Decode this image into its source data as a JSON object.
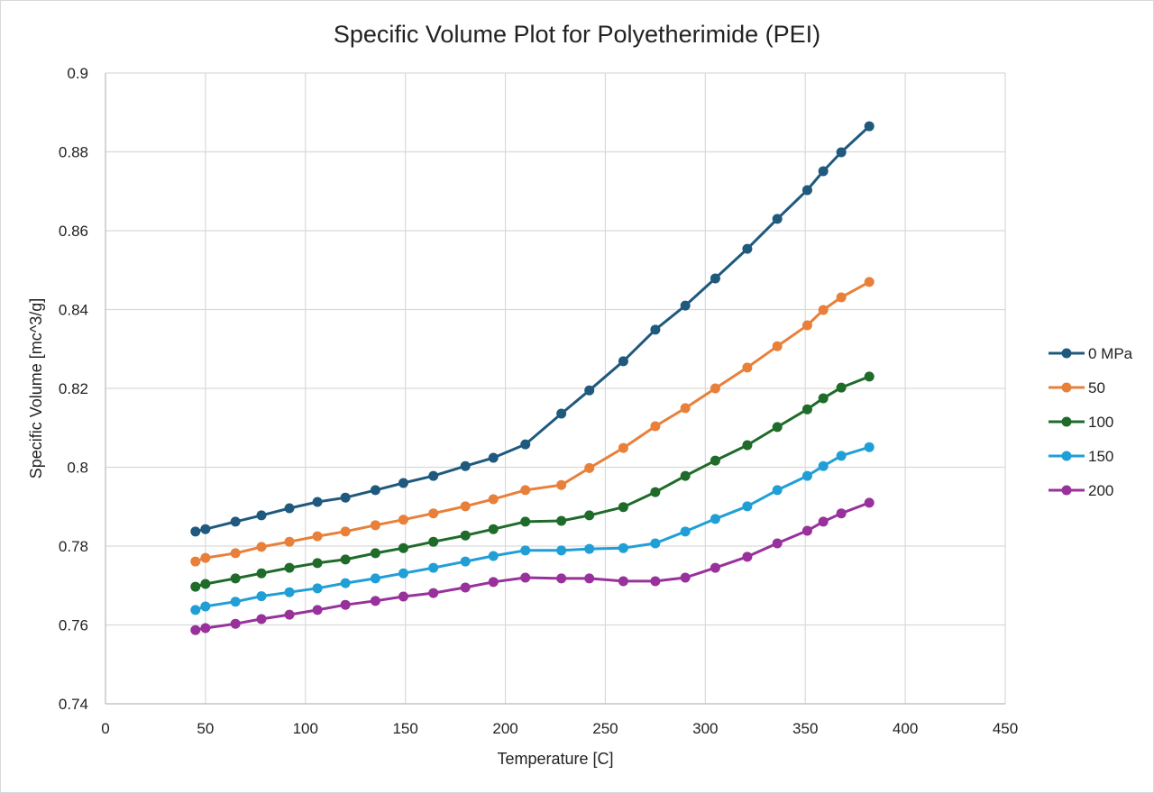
{
  "chart_data": {
    "type": "line",
    "title": "Specific Volume Plot for Polyetherimide (PEI)",
    "xlabel": "Temperature [C]",
    "ylabel": "Specific Volume [mc^3/g]",
    "xlim": [
      0,
      450
    ],
    "ylim": [
      0.74,
      0.9
    ],
    "x_ticks": [
      0,
      50,
      100,
      150,
      200,
      250,
      300,
      350,
      400,
      450
    ],
    "y_ticks": [
      0.74,
      0.76,
      0.78,
      0.8,
      0.82,
      0.84,
      0.86,
      0.88,
      0.9
    ],
    "x_tick_labels": [
      "0",
      "50",
      "100",
      "150",
      "200",
      "250",
      "300",
      "350",
      "400",
      "450"
    ],
    "y_tick_labels": [
      "0.74",
      "0.76",
      "0.78",
      "0.8",
      "0.82",
      "0.84",
      "0.86",
      "0.88",
      "0.9"
    ],
    "grid": true,
    "legend_position": "right",
    "x": [
      45,
      50,
      65,
      78,
      92,
      106,
      120,
      135,
      149,
      164,
      180,
      194,
      210,
      228,
      242,
      259,
      275,
      290,
      305,
      321,
      336,
      351,
      359,
      368,
      382
    ],
    "series": [
      {
        "name": "0 MPa",
        "color": "#1f5a7e",
        "values": [
          0.7837,
          0.7843,
          0.7862,
          0.7878,
          0.7896,
          0.7912,
          0.7923,
          0.7942,
          0.796,
          0.7978,
          0.8003,
          0.8024,
          0.8058,
          0.8136,
          0.8195,
          0.8269,
          0.8349,
          0.841,
          0.8479,
          0.8554,
          0.863,
          0.8703,
          0.8751,
          0.8799,
          0.8865
        ]
      },
      {
        "name": "50",
        "color": "#e8803a",
        "values": [
          0.7761,
          0.777,
          0.7782,
          0.7798,
          0.7811,
          0.7825,
          0.7837,
          0.7853,
          0.7867,
          0.7883,
          0.7901,
          0.7919,
          0.7942,
          0.7955,
          0.7998,
          0.8049,
          0.8104,
          0.815,
          0.82,
          0.8253,
          0.8307,
          0.836,
          0.8399,
          0.8431,
          0.847
        ]
      },
      {
        "name": "100",
        "color": "#1e6b2a",
        "values": [
          0.7697,
          0.7704,
          0.7718,
          0.7731,
          0.7745,
          0.7757,
          0.7766,
          0.7782,
          0.7795,
          0.7811,
          0.7827,
          0.7843,
          0.7862,
          0.7864,
          0.7878,
          0.7899,
          0.7937,
          0.7978,
          0.8017,
          0.8056,
          0.8102,
          0.8147,
          0.8175,
          0.8202,
          0.823
        ]
      },
      {
        "name": "150",
        "color": "#209fd6",
        "values": [
          0.7638,
          0.7647,
          0.7659,
          0.7673,
          0.7683,
          0.7693,
          0.7706,
          0.7718,
          0.7731,
          0.7745,
          0.7761,
          0.7775,
          0.7789,
          0.7789,
          0.7793,
          0.7795,
          0.7807,
          0.7837,
          0.7869,
          0.7901,
          0.7942,
          0.7978,
          0.8003,
          0.8029,
          0.8051
        ]
      },
      {
        "name": "200",
        "color": "#98319c",
        "values": [
          0.7587,
          0.7592,
          0.7603,
          0.7615,
          0.7626,
          0.7638,
          0.7651,
          0.7661,
          0.7672,
          0.7681,
          0.7695,
          0.7709,
          0.772,
          0.7718,
          0.7718,
          0.7711,
          0.7711,
          0.772,
          0.7745,
          0.7773,
          0.7807,
          0.7839,
          0.7862,
          0.7883,
          0.791
        ]
      }
    ]
  }
}
